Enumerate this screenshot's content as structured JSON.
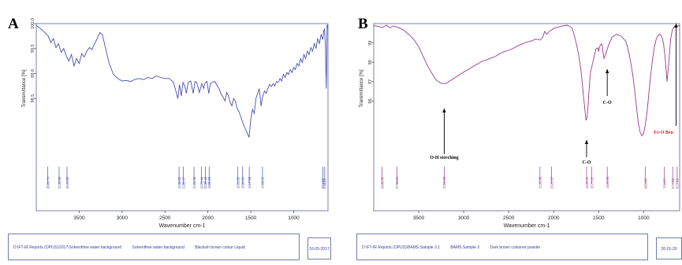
{
  "chart_data": [
    {
      "type": "line",
      "panel_label": "A",
      "xlabel": "Wavenumber cm-1",
      "ylabel": "Transmittance [%]",
      "xlim": [
        4000,
        600
      ],
      "ylim": [
        97.4,
        100.0
      ],
      "x_ticks": [
        "3500",
        "3000",
        "2500",
        "2000",
        "1500",
        "1000"
      ],
      "x_tick_values": [
        3500,
        3000,
        2500,
        2000,
        1500,
        1000
      ],
      "y_ticks": [
        "100.0",
        "99.5",
        "99.0",
        "98.5"
      ],
      "y_tick_values": [
        100.0,
        99.5,
        99.0,
        98.5
      ],
      "line_color": "#4a4fb0",
      "series": [
        {
          "x": [
            4000,
            3950,
            3900,
            3860,
            3830,
            3800,
            3770,
            3740,
            3710,
            3680,
            3650,
            3620,
            3590,
            3560,
            3530,
            3500,
            3470,
            3440,
            3410,
            3380,
            3350,
            3320,
            3290,
            3260,
            3230,
            3200,
            3150,
            3100,
            3050,
            3000,
            2950,
            2900,
            2850,
            2800,
            2750,
            2700,
            2650,
            2600,
            2550,
            2500,
            2450,
            2400,
            2350,
            2330,
            2310,
            2290,
            2270,
            2250,
            2230,
            2200,
            2170,
            2150,
            2130,
            2100,
            2070,
            2050,
            2030,
            2010,
            1990,
            1970,
            1950,
            1920,
            1900,
            1870,
            1850,
            1820,
            1800,
            1780,
            1760,
            1740,
            1720,
            1700,
            1680,
            1660,
            1640,
            1620,
            1600,
            1580,
            1560,
            1540,
            1520,
            1500,
            1480,
            1460,
            1440,
            1420,
            1400,
            1380,
            1360,
            1340,
            1320,
            1300,
            1280,
            1260,
            1240,
            1220,
            1200,
            1180,
            1160,
            1140,
            1120,
            1100,
            1080,
            1060,
            1040,
            1020,
            1000,
            980,
            960,
            940,
            920,
            900,
            880,
            860,
            840,
            820,
            800,
            780,
            760,
            740,
            720,
            700,
            680,
            660,
            650,
            640,
            630,
            620,
            610,
            600
          ],
          "y": [
            99.96,
            99.9,
            99.82,
            99.75,
            99.62,
            99.7,
            99.52,
            99.6,
            99.42,
            99.5,
            99.35,
            99.25,
            99.38,
            99.15,
            99.3,
            99.2,
            99.4,
            99.33,
            99.45,
            99.52,
            99.48,
            99.6,
            99.7,
            99.82,
            99.78,
            99.56,
            99.2,
            98.98,
            98.9,
            98.85,
            98.86,
            98.84,
            98.88,
            98.9,
            98.88,
            98.92,
            98.9,
            98.95,
            98.92,
            98.9,
            98.9,
            98.82,
            98.5,
            98.78,
            98.55,
            98.82,
            98.75,
            98.6,
            98.82,
            98.85,
            98.6,
            98.84,
            98.82,
            98.62,
            98.8,
            98.7,
            98.82,
            98.84,
            98.6,
            98.8,
            98.82,
            98.84,
            98.78,
            98.7,
            98.6,
            98.52,
            98.45,
            98.62,
            98.55,
            98.42,
            98.35,
            98.5,
            98.45,
            98.3,
            98.25,
            98.15,
            98.05,
            97.95,
            97.88,
            97.8,
            97.72,
            98.08,
            98.28,
            98.2,
            98.5,
            98.6,
            98.7,
            98.35,
            98.55,
            98.65,
            98.6,
            98.7,
            98.78,
            98.74,
            98.8,
            98.75,
            98.84,
            98.82,
            98.9,
            98.85,
            98.98,
            98.92,
            99.02,
            98.98,
            99.08,
            99.02,
            99.12,
            99.08,
            99.2,
            99.15,
            99.3,
            99.22,
            99.38,
            99.3,
            99.45,
            99.38,
            99.52,
            99.45,
            99.6,
            99.5,
            99.7,
            99.6,
            99.78,
            99.68,
            99.85,
            99.9,
            99.55,
            98.7,
            99.98,
            99.9
          ]
        }
      ],
      "peak_labels": [
        "3866.74",
        "3733.69",
        "3641.55",
        "2335.80",
        "2285.17",
        "2161.50",
        "2073.40",
        "2030.53",
        "1985.29",
        "1651.82",
        "1594.95",
        "1517.59",
        "1363.51",
        "660.23",
        "638.23"
      ],
      "peak_positions": [
        3866.74,
        3733.69,
        3641.55,
        2335.8,
        2285.17,
        2161.5,
        2073.4,
        2030.53,
        1985.29,
        1651.82,
        1594.95,
        1517.59,
        1363.51,
        660.23,
        638.23
      ],
      "footer": [
        "D:\\FT-IR Reports (OPUS)\\2017\\Solventfree water background",
        "Solventfree water background",
        "Blackish brown colour Liquid"
      ],
      "date": "16-05-2017"
    },
    {
      "type": "line",
      "panel_label": "B",
      "xlabel": "Wavenumber cm-1",
      "ylabel": "Transmittance [%]",
      "xlim": [
        4000,
        600
      ],
      "ylim": [
        93.3,
        100.0
      ],
      "x_ticks": [
        "3500",
        "3000",
        "2500",
        "2000",
        "1500",
        "1000"
      ],
      "x_tick_values": [
        3500,
        3000,
        2500,
        2000,
        1500,
        1000
      ],
      "y_ticks": [
        "99",
        "98",
        "97",
        "96"
      ],
      "y_tick_values": [
        99,
        98,
        97,
        96
      ],
      "line_color": "#9b3a8c",
      "series": [
        {
          "x": [
            4000,
            3950,
            3900,
            3860,
            3820,
            3780,
            3740,
            3700,
            3650,
            3600,
            3550,
            3500,
            3450,
            3400,
            3350,
            3300,
            3250,
            3200,
            3150,
            3100,
            3050,
            3000,
            2950,
            2900,
            2850,
            2800,
            2750,
            2700,
            2650,
            2600,
            2550,
            2500,
            2450,
            2400,
            2350,
            2300,
            2250,
            2200,
            2150,
            2120,
            2100,
            2080,
            2050,
            2000,
            1950,
            1900,
            1850,
            1800,
            1780,
            1760,
            1740,
            1720,
            1700,
            1690,
            1680,
            1670,
            1660,
            1650,
            1640,
            1630,
            1620,
            1610,
            1600,
            1590,
            1570,
            1550,
            1530,
            1510,
            1500,
            1490,
            1470,
            1460,
            1450,
            1440,
            1420,
            1400,
            1380,
            1350,
            1300,
            1250,
            1200,
            1180,
            1160,
            1140,
            1120,
            1100,
            1080,
            1060,
            1040,
            1020,
            1000,
            980,
            960,
            940,
            920,
            900,
            880,
            860,
            840,
            820,
            800,
            780,
            760,
            740,
            720,
            700,
            680,
            660,
            640,
            620,
            600
          ],
          "y": [
            99.9,
            99.85,
            99.8,
            99.92,
            99.78,
            99.88,
            99.82,
            99.75,
            99.6,
            99.4,
            99.15,
            98.8,
            98.3,
            97.8,
            97.4,
            97.05,
            96.92,
            96.9,
            97.05,
            97.2,
            97.35,
            97.5,
            97.62,
            97.78,
            97.9,
            98.05,
            98.12,
            98.22,
            98.3,
            98.45,
            98.55,
            98.62,
            98.72,
            98.85,
            98.95,
            99.05,
            99.1,
            99.2,
            99.15,
            99.3,
            99.6,
            99.45,
            99.58,
            99.75,
            99.82,
            99.88,
            99.92,
            99.8,
            99.55,
            99.2,
            98.8,
            98.3,
            97.7,
            97.3,
            96.8,
            96.3,
            95.9,
            95.4,
            95.0,
            95.15,
            95.6,
            96.3,
            97.0,
            97.5,
            97.9,
            98.3,
            98.7,
            98.75,
            98.55,
            98.8,
            98.95,
            98.85,
            98.45,
            98.2,
            98.45,
            98.75,
            99.0,
            99.3,
            99.45,
            99.35,
            99.1,
            98.8,
            98.4,
            97.9,
            97.3,
            96.6,
            95.7,
            94.9,
            94.4,
            94.2,
            94.35,
            94.8,
            95.5,
            96.5,
            97.4,
            98.2,
            98.8,
            99.2,
            99.4,
            99.45,
            99.35,
            99.0,
            98.2,
            97.0,
            98.0,
            99.2,
            99.7,
            99.85,
            99.9,
            99.88,
            99.9
          ]
        }
      ],
      "peak_labels": [
        "3906.36",
        "3742.46",
        "3216.60",
        "2152.38",
        "2023.67",
        "1634.41",
        "1577.37",
        "1404.58",
        "980.98",
        "768.97",
        "677.33",
        "627.33"
      ],
      "peak_positions": [
        3906.36,
        3742.46,
        3216.6,
        2152.38,
        2023.67,
        1634.41,
        1577.37,
        1404.58,
        980.98,
        768.97,
        677.33,
        627.33
      ],
      "annotations": [
        {
          "text": "O-H streching",
          "color": "#000000",
          "at_x": 3216.6
        },
        {
          "text": "C-O",
          "color": "#000000",
          "at_x": 1634.41
        },
        {
          "text": "C-O",
          "color": "#000000",
          "at_x": 1404.58
        },
        {
          "text": "Fe-O Ben",
          "color": "#e02020",
          "at_x": 640
        }
      ],
      "footer": [
        "D:\\FT-IR Reports (OPUS)\\BAMS Sample 3.1",
        "BAMS Sample 3",
        "Dark brown coloured powder"
      ],
      "date": "26-01-20"
    }
  ]
}
